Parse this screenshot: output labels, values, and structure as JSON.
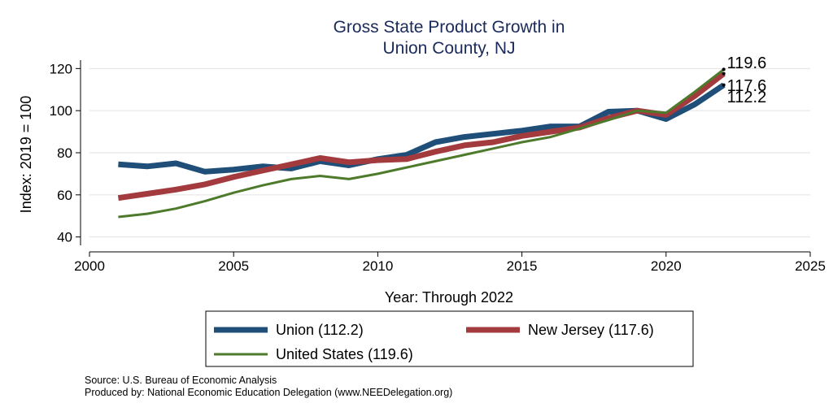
{
  "chart_data": {
    "type": "line",
    "title_lines": [
      "Gross State Product Growth in",
      "Union County, NJ"
    ],
    "xlabel": "Year: Through 2022",
    "ylabel": "Index: 2019 = 100",
    "xlim": [
      2000,
      2025
    ],
    "ylim": [
      36,
      124
    ],
    "xticks": [
      2000,
      2005,
      2010,
      2015,
      2020,
      2025
    ],
    "yticks": [
      40,
      60,
      80,
      100,
      120
    ],
    "grid": "horizontal",
    "legend_position": "bottom",
    "x": [
      2001,
      2002,
      2003,
      2004,
      2005,
      2006,
      2007,
      2008,
      2009,
      2010,
      2011,
      2012,
      2013,
      2014,
      2015,
      2016,
      2017,
      2018,
      2019,
      2020,
      2021,
      2022
    ],
    "series": [
      {
        "name": "Union",
        "legend_label": "Union  (112.2)",
        "color": "#1f4e79",
        "values": [
          74.5,
          73.5,
          75,
          71,
          72,
          73.5,
          72.5,
          76,
          74,
          77,
          79,
          85,
          87.5,
          89,
          90.5,
          92.5,
          92.5,
          99.5,
          100,
          96,
          103,
          112.2
        ],
        "end_label": "112.2"
      },
      {
        "name": "New Jersey",
        "legend_label": "New Jersey (117.6)",
        "color": "#a33b3e",
        "values": [
          58.5,
          60.5,
          62.5,
          65,
          68.5,
          71.5,
          74.5,
          77.5,
          75.5,
          76.5,
          77,
          80.5,
          83.5,
          85,
          88,
          90,
          92,
          96.5,
          100,
          98,
          107,
          117.6
        ],
        "end_label": "117.6"
      },
      {
        "name": "United States",
        "legend_label": "United States (119.6)",
        "color": "#4e7a2c",
        "values": [
          49.5,
          51,
          53.5,
          57,
          61,
          64.5,
          67.5,
          69,
          67.5,
          70,
          73,
          76,
          79,
          82,
          85,
          87.5,
          91.5,
          95.5,
          100,
          99,
          109,
          119.6
        ],
        "end_label": "119.6"
      }
    ]
  },
  "footnotes": {
    "source": "Source: U.S. Bureau of Economic Analysis",
    "produced_by": "Produced by: National Economic Education Delegation (www.NEEDelegation.org)"
  }
}
